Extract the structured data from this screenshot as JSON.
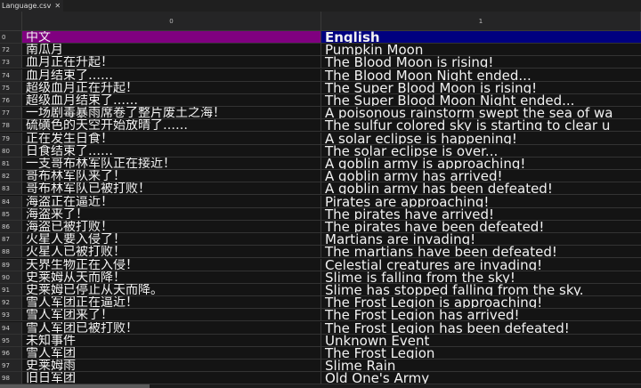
{
  "tab": {
    "title": "Language.csv",
    "close": "✕"
  },
  "columns": [
    "0",
    "1"
  ],
  "rows": [
    {
      "n": "0",
      "zh": "中文",
      "en": "English"
    },
    {
      "n": "72",
      "zh": "南瓜月",
      "en": "Pumpkin Moon"
    },
    {
      "n": "73",
      "zh": "血月正在升起！",
      "en": "The Blood Moon is rising!"
    },
    {
      "n": "74",
      "zh": "血月结束了……",
      "en": "The Blood Moon Night ended..."
    },
    {
      "n": "75",
      "zh": "超级血月正在升起！",
      "en": "The Super Blood Moon is rising!"
    },
    {
      "n": "76",
      "zh": "超级血月结束了……",
      "en": "The Super Blood Moon Night ended..."
    },
    {
      "n": "77",
      "zh": "一场剧毒暴雨席卷了整片废土之海！",
      "en": "A poisonous rainstorm swept the sea of wa"
    },
    {
      "n": "78",
      "zh": "硫磺色的天空开始放晴了……",
      "en": "The sulfur colored sky is starting to clear u"
    },
    {
      "n": "79",
      "zh": "正在发生日食！",
      "en": "A solar eclipse is happening!"
    },
    {
      "n": "80",
      "zh": "日食结束了……",
      "en": "The solar eclipse is over..."
    },
    {
      "n": "81",
      "zh": "一支哥布林军队正在接近！",
      "en": "A goblin army is approaching!"
    },
    {
      "n": "82",
      "zh": "哥布林军队来了！",
      "en": "A goblin army has arrived!"
    },
    {
      "n": "83",
      "zh": "哥布林军队已被打败！",
      "en": "A goblin army has been defeated!"
    },
    {
      "n": "84",
      "zh": "海盗正在逼近！",
      "en": "Pirates are approaching!"
    },
    {
      "n": "85",
      "zh": "海盗来了！",
      "en": "The pirates have arrived!"
    },
    {
      "n": "86",
      "zh": "海盗已被打败！",
      "en": "The pirates have been defeated!"
    },
    {
      "n": "87",
      "zh": "火星人要入侵了！",
      "en": "Martians are invading!"
    },
    {
      "n": "88",
      "zh": "火星人已被打败！",
      "en": "The martians have been defeated!"
    },
    {
      "n": "89",
      "zh": "天界生物正在入侵！",
      "en": "Celestial creatures are invading!"
    },
    {
      "n": "90",
      "zh": "史莱姆从天而降！",
      "en": "Slime is falling from the sky!"
    },
    {
      "n": "91",
      "zh": "史莱姆已停止从天而降。",
      "en": "Slime has stopped falling from the sky."
    },
    {
      "n": "92",
      "zh": "雪人军团正在逼近！",
      "en": "The Frost Legion is approaching!"
    },
    {
      "n": "93",
      "zh": "雪人军团来了！",
      "en": "The Frost Legion has arrived!"
    },
    {
      "n": "94",
      "zh": "雪人军团已被打败！",
      "en": "The Frost Legion has been defeated!"
    },
    {
      "n": "95",
      "zh": "未知事件",
      "en": "Unknown Event"
    },
    {
      "n": "96",
      "zh": "雪人军团",
      "en": "The Frost Legion"
    },
    {
      "n": "97",
      "zh": "史莱姆雨",
      "en": "Slime Rain"
    },
    {
      "n": "98",
      "zh": "旧日军团",
      "en": "Old One's Army"
    }
  ],
  "colors": {
    "header_col0": "#800080",
    "header_col1": "#000080"
  }
}
